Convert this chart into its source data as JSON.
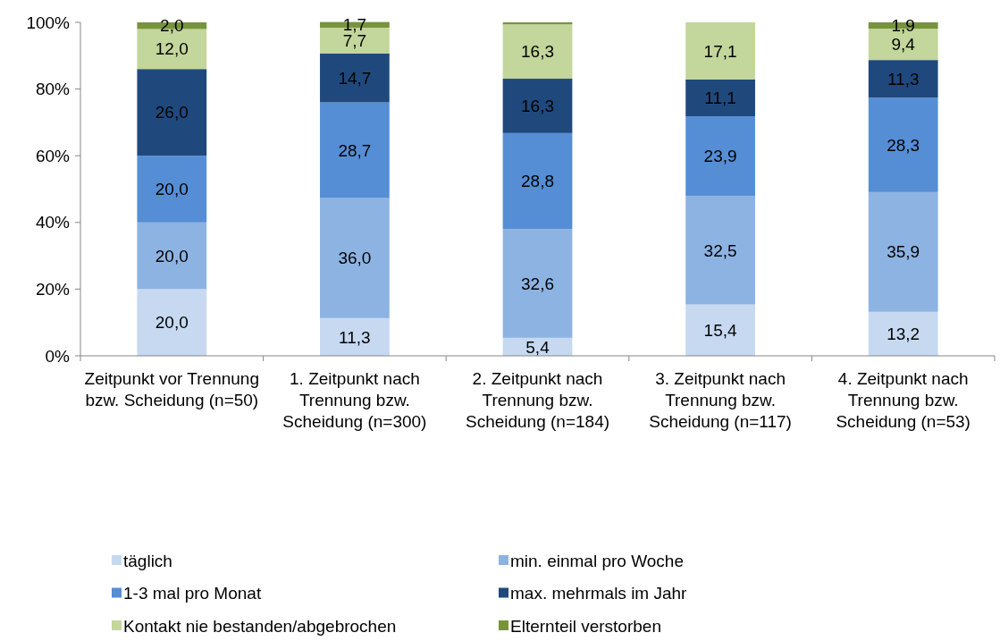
{
  "chart_data": {
    "type": "bar",
    "stacked": true,
    "categories": [
      "Zeitpunkt vor Trennung bzw. Scheidung (n=50)",
      "1. Zeitpunkt nach Trennung bzw. Scheidung (n=300)",
      "2. Zeitpunkt nach Trennung bzw. Scheidung (n=184)",
      "3. Zeitpunkt nach Trennung bzw. Scheidung (n=117)",
      "4. Zeitpunkt nach Trennung bzw. Scheidung (n=53)"
    ],
    "series": [
      {
        "name": "täglich",
        "color": "#c6d9f1",
        "values": [
          20.0,
          11.3,
          5.4,
          15.4,
          13.2
        ],
        "value_labels": [
          "20,0",
          "11,3",
          "5,4",
          "15,4",
          "13,2"
        ]
      },
      {
        "name": "min. einmal pro Woche",
        "color": "#8db3e2",
        "values": [
          20.0,
          36.0,
          32.6,
          32.5,
          35.9
        ],
        "value_labels": [
          "20,0",
          "36,0",
          "32,6",
          "32,5",
          "35,9"
        ]
      },
      {
        "name": "1-3 mal pro Monat",
        "color": "#558ed5",
        "values": [
          20.0,
          28.7,
          28.8,
          23.9,
          28.3
        ],
        "value_labels": [
          "20,0",
          "28,7",
          "28,8",
          "23,9",
          "28,3"
        ]
      },
      {
        "name": "max. mehrmals im Jahr",
        "color": "#1f497d",
        "values": [
          26.0,
          14.7,
          16.3,
          11.1,
          11.3
        ],
        "value_labels": [
          "26,0",
          "14,7",
          "16,3",
          "11,1",
          "11,3"
        ]
      },
      {
        "name": "Kontakt nie bestanden/abgebrochen",
        "color": "#c3d69b",
        "values": [
          12.0,
          7.7,
          16.3,
          17.1,
          9.4
        ],
        "value_labels": [
          "12,0",
          "7,7",
          "16,3",
          "17,1",
          "9,4"
        ]
      },
      {
        "name": "Elternteil verstorben",
        "color": "#77933c",
        "values": [
          2.0,
          1.7,
          0.6,
          null,
          1.9
        ],
        "value_labels": [
          "2,0",
          "1,7",
          null,
          null,
          "1,9"
        ]
      }
    ],
    "ylim": [
      0,
      100
    ],
    "yticks": [
      {
        "value": 0,
        "label": "0%"
      },
      {
        "value": 20,
        "label": "20%"
      },
      {
        "value": 40,
        "label": "40%"
      },
      {
        "value": 60,
        "label": "60%"
      },
      {
        "value": 80,
        "label": "80%"
      },
      {
        "value": 100,
        "label": "100%"
      }
    ],
    "grid": false,
    "legend": "bottom"
  }
}
